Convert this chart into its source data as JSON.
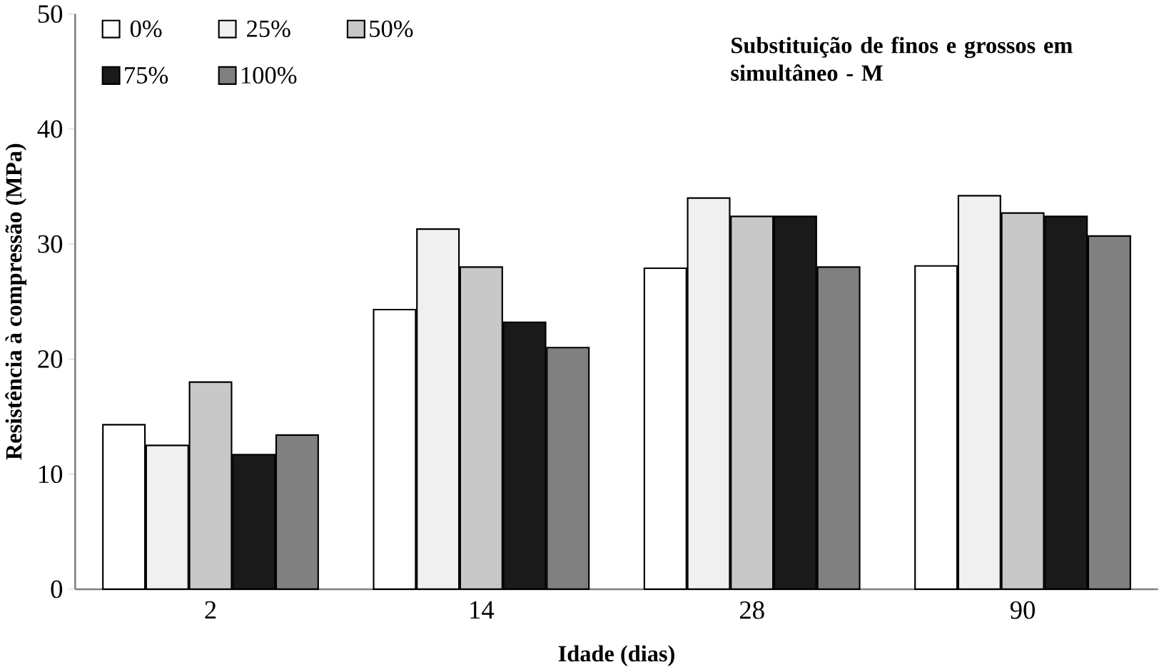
{
  "chart_data": {
    "type": "bar",
    "title": "Substituição de finos e grossos em simultâneo - M",
    "xlabel": "Idade (dias)",
    "ylabel": "Resistência à compressão (MPa)",
    "categories": [
      "2",
      "14",
      "28",
      "90"
    ],
    "series": [
      {
        "name": "0%",
        "color": "#ffffff",
        "values": [
          14.3,
          24.3,
          27.9,
          28.1
        ]
      },
      {
        "name": "25%",
        "color": "#f0f0f0",
        "values": [
          12.5,
          31.3,
          34.0,
          34.2
        ]
      },
      {
        "name": "50%",
        "color": "#c8c8c8",
        "values": [
          18.0,
          28.0,
          32.4,
          32.7
        ]
      },
      {
        "name": "75%",
        "color": "#1a1a1a",
        "values": [
          11.7,
          23.2,
          32.4,
          32.4
        ]
      },
      {
        "name": "100%",
        "color": "#808080",
        "values": [
          13.4,
          21.0,
          28.0,
          30.7
        ]
      }
    ],
    "ylim": [
      0,
      50
    ],
    "yticks": [
      0,
      10,
      20,
      30,
      40,
      50
    ],
    "grid": false,
    "legend": "top left"
  }
}
